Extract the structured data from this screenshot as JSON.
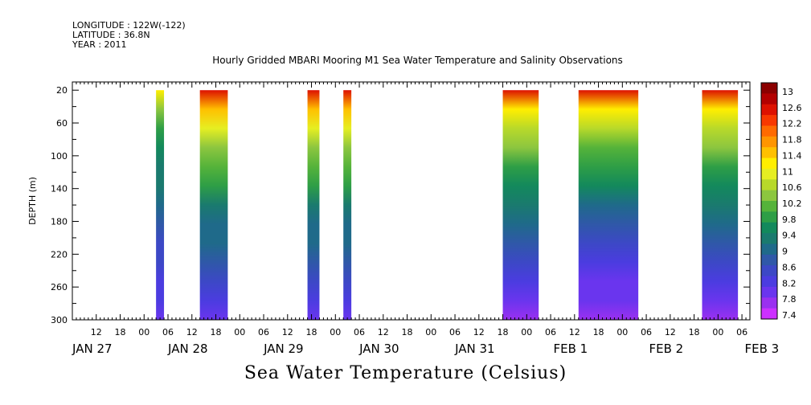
{
  "header": {
    "longitude": "LONGITUDE : 122W(-122)",
    "latitude": "LATITUDE : 36.8N",
    "year": "YEAR : 2011"
  },
  "chart_data": {
    "type": "heatmap",
    "title": "Hourly Gridded MBARI Mooring M1 Sea Water Temperature and Salinity Observations",
    "xlabel": "Sea Water Temperature (Celsius)",
    "ylabel": "DEPTH (m)",
    "ylim": [
      300,
      10
    ],
    "y_ticks": [
      20,
      60,
      100,
      140,
      180,
      220,
      260,
      300
    ],
    "x_hour_ticks": [
      "12",
      "18",
      "00",
      "06",
      "12",
      "18",
      "00",
      "06",
      "12",
      "18",
      "00",
      "06",
      "12",
      "18",
      "00",
      "06",
      "12",
      "18",
      "00",
      "06",
      "12",
      "18",
      "00",
      "06",
      "12",
      "18",
      "00",
      "06"
    ],
    "x_day_labels": [
      "JAN 27",
      "JAN 28",
      "JAN 29",
      "JAN 30",
      "JAN 31",
      "FEB  1",
      "FEB  2",
      "FEB  3"
    ],
    "colorbar": {
      "levels": [
        "13",
        "12.6",
        "12.2",
        "11.8",
        "11.4",
        "11",
        "10.6",
        "10.2",
        "9.8",
        "9.4",
        "9",
        "8.6",
        "8.2",
        "7.8",
        "7.4"
      ],
      "colors": [
        "#8b0000",
        "#b30000",
        "#dd1100",
        "#f83800",
        "#ff6a00",
        "#ff9500",
        "#ffc000",
        "#ffee00",
        "#e6ee22",
        "#b8d92a",
        "#8cc63f",
        "#55b33a",
        "#2e9e46",
        "#13895c",
        "#1a7a6e",
        "#1f6a8a",
        "#2f58a8",
        "#3c48c6",
        "#4b3ce0",
        "#6a35ee",
        "#9a30f0",
        "#cc30ff"
      ]
    },
    "data_bands": [
      {
        "start": "JAN 28 03",
        "end": "JAN 28 05",
        "surface_temp": 11.2,
        "bottom_temp": 8.0
      },
      {
        "start": "JAN 28 14",
        "end": "JAN 28 21",
        "surface_temp": 12.6,
        "bottom_temp": 8.0
      },
      {
        "start": "JAN 29 17",
        "end": "JAN 29 20",
        "surface_temp": 12.6,
        "bottom_temp": 8.0
      },
      {
        "start": "JAN 30 02",
        "end": "JAN 30 04",
        "surface_temp": 12.6,
        "bottom_temp": 8.0
      },
      {
        "start": "JAN 31 18",
        "end": "FEB 1 03",
        "surface_temp": 12.6,
        "bottom_temp": 7.8
      },
      {
        "start": "FEB 1 13",
        "end": "FEB 2 04",
        "surface_temp": 12.6,
        "bottom_temp": 7.6
      },
      {
        "start": "FEB 2 20",
        "end": "FEB 3 05",
        "surface_temp": 12.6,
        "bottom_temp": 7.8
      }
    ]
  }
}
